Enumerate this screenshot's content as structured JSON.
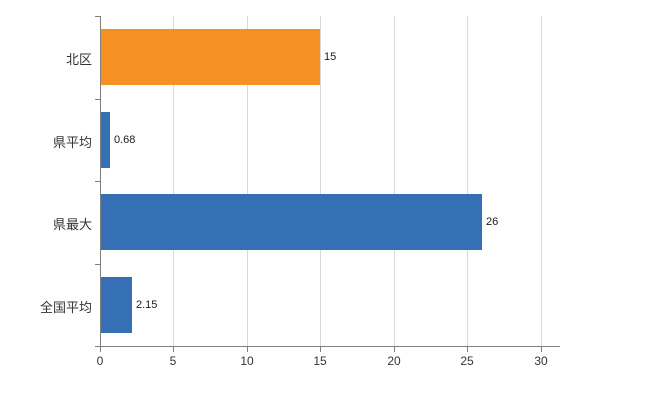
{
  "chart_data": {
    "type": "bar",
    "orientation": "horizontal",
    "title": "",
    "xlabel": "",
    "ylabel": "",
    "categories": [
      "北区",
      "県平均",
      "県最大",
      "全国平均"
    ],
    "values": [
      15,
      0.68,
      26,
      2.15
    ],
    "value_labels": [
      "15",
      "0.68",
      "26",
      "2.15"
    ],
    "bar_colors": [
      "#f59123",
      "#3570b4",
      "#3570b4",
      "#3570b4"
    ],
    "x_ticks": [
      0,
      5,
      10,
      15,
      20,
      25,
      30
    ],
    "x_tick_labels": [
      "0",
      "5",
      "10",
      "15",
      "20",
      "25",
      "30"
    ],
    "xlim": [
      0,
      31.3
    ],
    "grid": "vertical",
    "legend": "none",
    "colors": {
      "grid": "#d9d9d9",
      "axis": "#7f7f7f",
      "background": "#ffffff",
      "highlight_bar": "#f59123",
      "default_bar": "#3570b4"
    }
  }
}
